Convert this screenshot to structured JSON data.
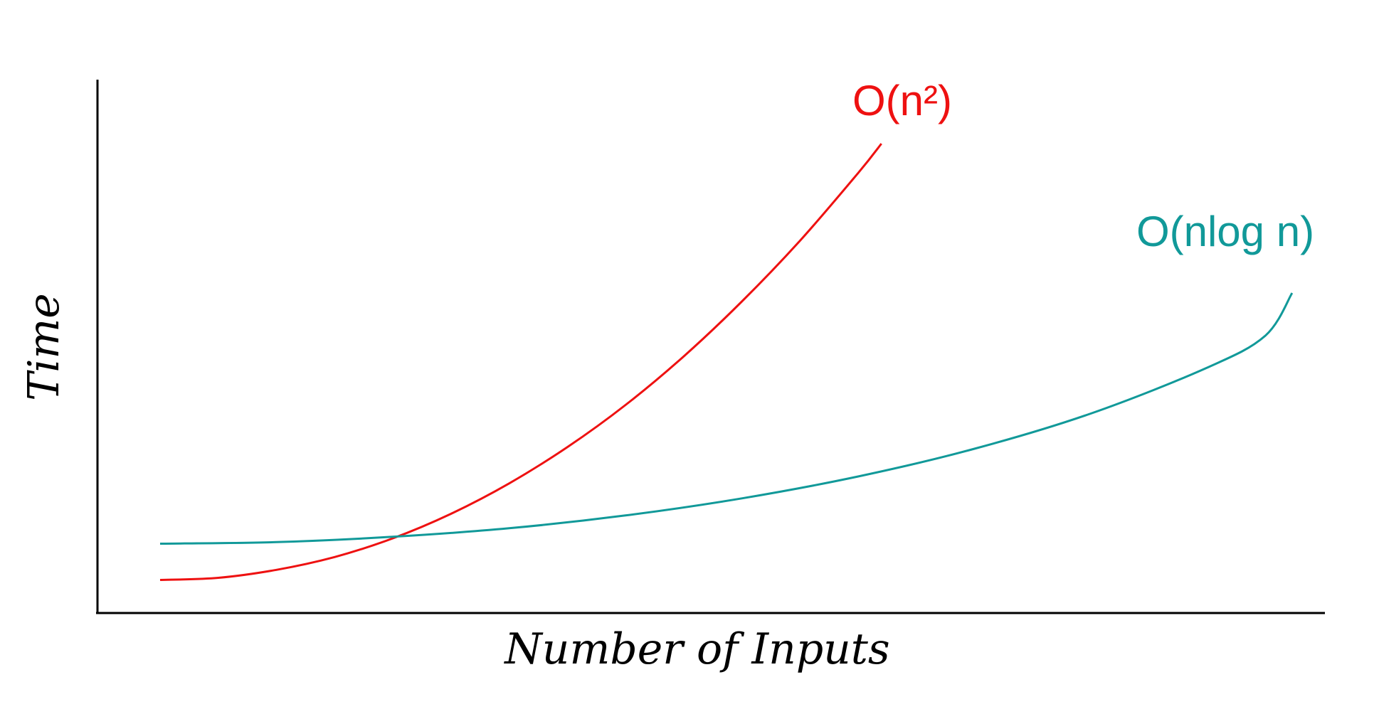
{
  "chart_data": {
    "type": "line",
    "title": "",
    "xlabel": "Number of Inputs",
    "ylabel": "Time",
    "xlim": [
      0,
      100
    ],
    "ylim": [
      0,
      100
    ],
    "grid": false,
    "legend": "none",
    "series": [
      {
        "name": "O(n²)",
        "color": "#ee1111",
        "x": [
          0,
          5,
          10,
          15,
          20,
          25,
          30,
          35,
          40,
          45,
          50,
          55,
          60,
          62
        ],
        "y": [
          6.2,
          6.6,
          8.1,
          10.5,
          14.0,
          18.6,
          24.3,
          31.1,
          39.0,
          48.1,
          58.4,
          69.8,
          82.5,
          88.0
        ]
      },
      {
        "name": "O(nlog n)",
        "color": "#119999",
        "x": [
          0,
          10,
          20,
          30,
          40,
          50,
          60,
          70,
          80,
          90,
          95,
          97.3
        ],
        "y": [
          13.0,
          13.3,
          14.3,
          15.9,
          18.3,
          21.5,
          25.6,
          30.8,
          37.4,
          46.0,
          52.0,
          60.0
        ]
      }
    ]
  }
}
